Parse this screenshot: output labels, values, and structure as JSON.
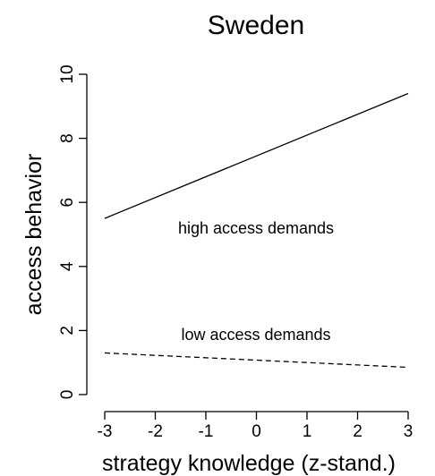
{
  "chart_data": {
    "type": "line",
    "title": "Sweden",
    "xlabel": "strategy knowledge (z-stand.)",
    "ylabel": "access behavior",
    "xlim": [
      -3,
      3
    ],
    "ylim": [
      0,
      10
    ],
    "x_ticks": [
      "-3",
      "-2",
      "-1",
      "0",
      "1",
      "2",
      "3"
    ],
    "y_ticks": [
      "0",
      "2",
      "4",
      "6",
      "8",
      "10"
    ],
    "grid": false,
    "series": [
      {
        "name": "high access demands",
        "style": "solid",
        "x": [
          -3,
          3
        ],
        "y": [
          5.5,
          9.4
        ]
      },
      {
        "name": "low access demands",
        "style": "dashed",
        "x": [
          -3,
          3
        ],
        "y": [
          1.3,
          0.85
        ]
      }
    ],
    "annotations": [
      "high access demands",
      "low access demands"
    ]
  }
}
